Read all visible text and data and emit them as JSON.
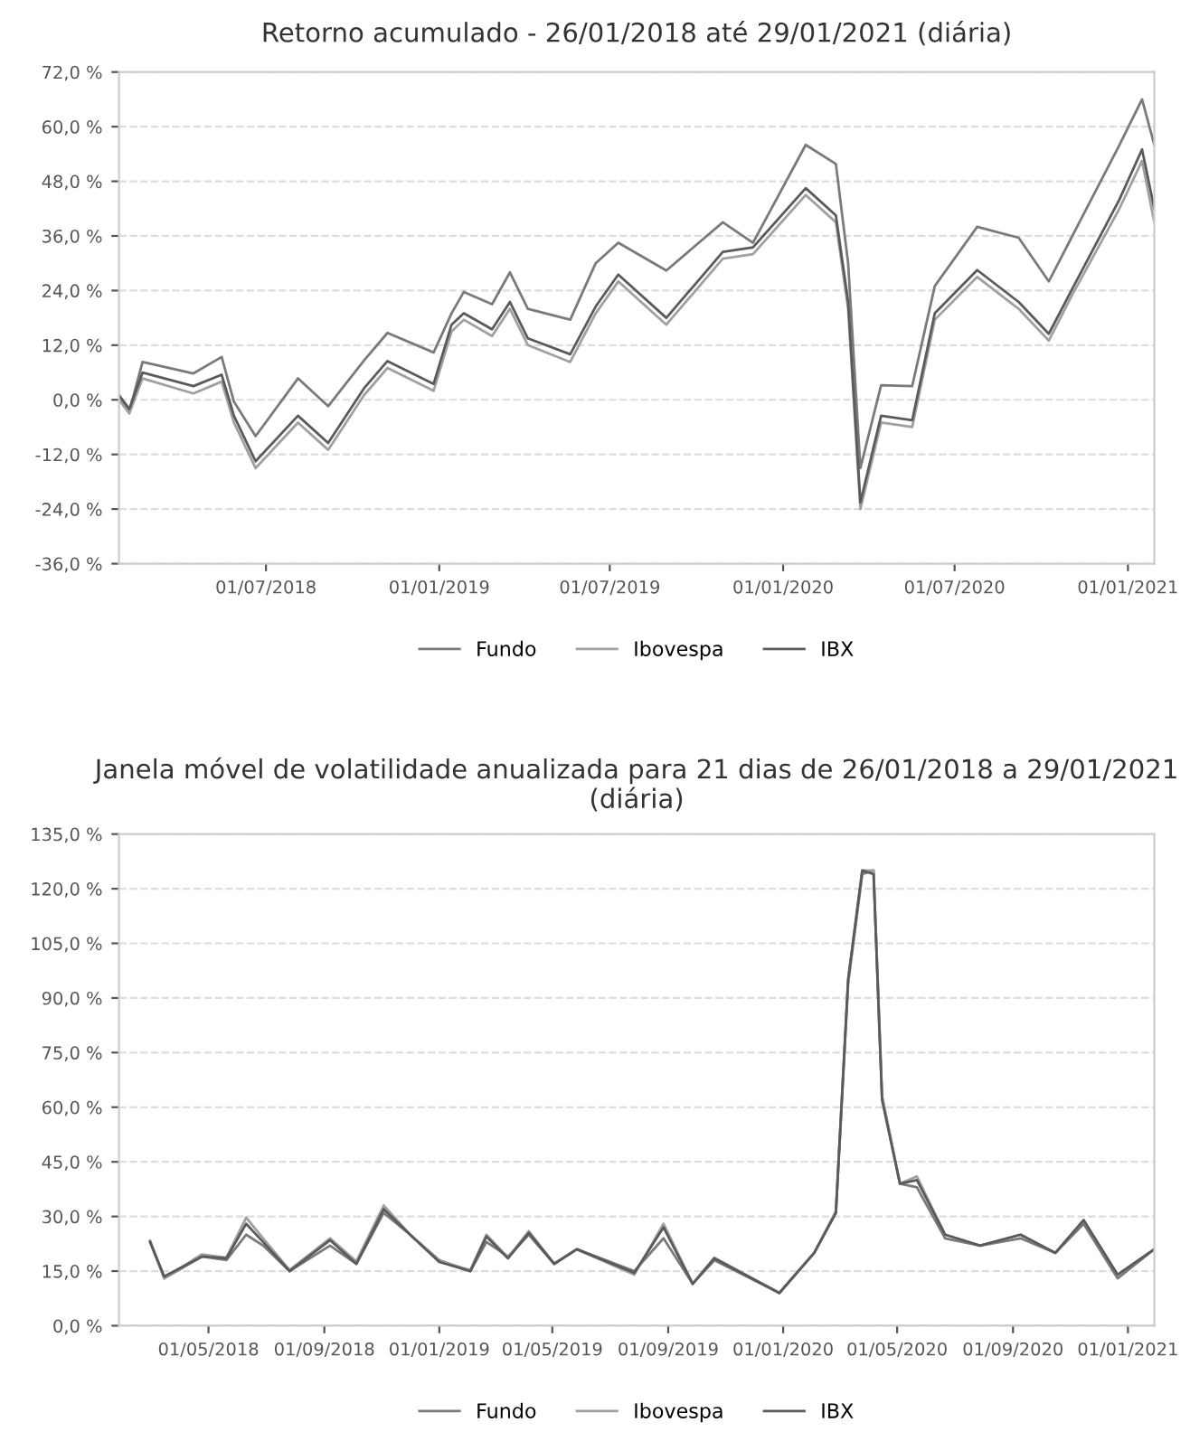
{
  "chart_data": [
    {
      "type": "line",
      "title": "Retorno acumulado - 26/01/2018 até 29/01/2021 (diária)",
      "x": [
        "2018-01-26",
        "2018-02-06",
        "2018-02-20",
        "2018-04-15",
        "2018-05-15",
        "2018-05-28",
        "2018-06-20",
        "2018-08-04",
        "2018-09-05",
        "2018-10-13",
        "2018-11-07",
        "2018-12-26",
        "2019-01-14",
        "2019-01-27",
        "2019-02-26",
        "2019-03-17",
        "2019-04-05",
        "2019-05-20",
        "2019-06-16",
        "2019-07-10",
        "2019-08-30",
        "2019-10-29",
        "2019-11-30",
        "2020-01-25",
        "2020-02-26",
        "2020-03-10",
        "2020-03-23",
        "2020-04-14",
        "2020-05-17",
        "2020-06-10",
        "2020-07-25",
        "2020-09-07",
        "2020-10-09",
        "2020-11-02",
        "2020-12-23",
        "2021-01-16",
        "2021-01-29"
      ],
      "series": [
        {
          "name": "Fundo",
          "color": "#7a7a7a",
          "values": [
            1,
            -2.5,
            8.3,
            5.8,
            9.4,
            -0.4,
            -8,
            4.7,
            -1.4,
            8.6,
            14.7,
            10.4,
            19,
            23.7,
            21,
            28,
            20,
            17.6,
            30,
            34.5,
            28.4,
            39,
            34.5,
            56,
            51.8,
            30,
            -15,
            3.2,
            3,
            25,
            38,
            35.6,
            26,
            35.6,
            56,
            66,
            56
          ]
        },
        {
          "name": "Ibovespa",
          "color": "#a0a0a0",
          "values": [
            0,
            -3,
            4.7,
            1.4,
            4,
            -5,
            -15,
            -5,
            -11,
            1,
            7,
            2,
            15,
            17.6,
            14,
            20,
            12,
            8.3,
            19,
            26,
            16.5,
            31,
            32,
            45,
            39,
            20,
            -24,
            -5,
            -6,
            17.6,
            27,
            20,
            13,
            22.7,
            42,
            52.5,
            39
          ]
        },
        {
          "name": "IBX",
          "color": "#5a5a5a",
          "values": [
            1,
            -2,
            6,
            3,
            5.5,
            -3.5,
            -13.5,
            -3.5,
            -9.5,
            2.5,
            8.5,
            3.5,
            16.5,
            19,
            15.5,
            21.5,
            13.5,
            10,
            20.5,
            27.5,
            18,
            32.5,
            33.5,
            46.5,
            40.5,
            21.5,
            -22.5,
            -3.5,
            -4.5,
            19,
            28.5,
            21.5,
            14.5,
            24,
            44,
            55,
            42
          ]
        }
      ],
      "ylim": [
        -36,
        72
      ],
      "yticks": [
        {
          "value": -36,
          "label": "-36,0 %"
        },
        {
          "value": -24,
          "label": "-24,0 %"
        },
        {
          "value": -12,
          "label": "-12,0 %"
        },
        {
          "value": 0,
          "label": "0,0 %"
        },
        {
          "value": 12,
          "label": "12,0 %"
        },
        {
          "value": 24,
          "label": "24,0 %"
        },
        {
          "value": 36,
          "label": "36,0 %"
        },
        {
          "value": 48,
          "label": "48,0 %"
        },
        {
          "value": 60,
          "label": "60,0 %"
        },
        {
          "value": 72,
          "label": "72,0 %"
        }
      ],
      "xlim": [
        "2018-01-26",
        "2021-01-29"
      ],
      "xticks": [
        {
          "value": "2018-07-01",
          "label": "01/07/2018"
        },
        {
          "value": "2019-01-01",
          "label": "01/01/2019"
        },
        {
          "value": "2019-07-01",
          "label": "01/07/2019"
        },
        {
          "value": "2020-01-01",
          "label": "01/01/2020"
        },
        {
          "value": "2020-07-01",
          "label": "01/07/2020"
        },
        {
          "value": "2021-01-01",
          "label": "01/01/2021"
        }
      ],
      "grid": "y",
      "legend": "bottom",
      "line_style": "solid"
    },
    {
      "type": "line",
      "title": "Janela móvel de volatilidade anualizada para 21 dias de 26/01/2018 a 29/01/2021 (diária)",
      "x": [
        "2018-02-28",
        "2018-03-15",
        "2018-04-24",
        "2018-05-20",
        "2018-06-10",
        "2018-06-28",
        "2018-07-26",
        "2018-09-07",
        "2018-10-05",
        "2018-11-03",
        "2018-12-01",
        "2019-01-01",
        "2019-02-03",
        "2019-02-20",
        "2019-03-15",
        "2019-04-06",
        "2019-05-03",
        "2019-05-27",
        "2019-07-27",
        "2019-08-27",
        "2019-09-27",
        "2019-10-20",
        "2019-12-28",
        "2020-02-03",
        "2020-02-26",
        "2020-03-10",
        "2020-03-25",
        "2020-04-06",
        "2020-04-15",
        "2020-05-04",
        "2020-05-22",
        "2020-06-21",
        "2020-07-28",
        "2020-09-09",
        "2020-10-16",
        "2020-11-15",
        "2020-12-21",
        "2021-01-29"
      ],
      "series": [
        {
          "name": "Fundo",
          "color": "#7a7a7a",
          "values": [
            23,
            13,
            19,
            18,
            25,
            22,
            15,
            22,
            17,
            31,
            25,
            18,
            15,
            23,
            19,
            25,
            17,
            21,
            15,
            24,
            11.5,
            18,
            9,
            20,
            31,
            94,
            124,
            125,
            63,
            39,
            38,
            24,
            22,
            24,
            20,
            28,
            13,
            21
          ]
        },
        {
          "name": "Ibovespa",
          "color": "#a0a0a0",
          "values": [
            23.4,
            13,
            19.6,
            18.7,
            29.7,
            24,
            15.3,
            24,
            17.7,
            33,
            25,
            17.7,
            15.3,
            25,
            18.7,
            26,
            17,
            21,
            14,
            28,
            11.5,
            18.7,
            9,
            20,
            31.5,
            95,
            125,
            125,
            63,
            39,
            41,
            25,
            22,
            25,
            20,
            29,
            14,
            21
          ]
        },
        {
          "name": "IBX",
          "color": "#5a5a5a",
          "values": [
            23,
            13.5,
            19,
            18.5,
            28,
            23,
            15,
            23.5,
            17,
            32,
            25,
            17.5,
            15,
            24.5,
            18.5,
            25.5,
            17,
            21,
            14.5,
            27,
            11.5,
            18.5,
            9,
            20,
            31,
            95,
            125,
            124,
            62,
            39,
            40,
            25,
            22,
            25,
            20,
            29,
            14,
            21
          ]
        }
      ],
      "ylim": [
        0,
        135
      ],
      "yticks": [
        {
          "value": 0,
          "label": "0,0 %"
        },
        {
          "value": 15,
          "label": "15,0 %"
        },
        {
          "value": 30,
          "label": "30,0 %"
        },
        {
          "value": 45,
          "label": "45,0 %"
        },
        {
          "value": 60,
          "label": "60,0 %"
        },
        {
          "value": 75,
          "label": "75,0 %"
        },
        {
          "value": 90,
          "label": "90,0 %"
        },
        {
          "value": 105,
          "label": "105,0 %"
        },
        {
          "value": 120,
          "label": "120,0 %"
        },
        {
          "value": 135,
          "label": "135,0 %"
        }
      ],
      "xlim": [
        "2018-01-26",
        "2021-01-29"
      ],
      "xticks": [
        {
          "value": "2018-05-01",
          "label": "01/05/2018"
        },
        {
          "value": "2018-09-01",
          "label": "01/09/2018"
        },
        {
          "value": "2019-01-01",
          "label": "01/01/2019"
        },
        {
          "value": "2019-05-01",
          "label": "01/05/2019"
        },
        {
          "value": "2019-09-01",
          "label": "01/09/2019"
        },
        {
          "value": "2020-01-01",
          "label": "01/01/2020"
        },
        {
          "value": "2020-05-01",
          "label": "01/05/2020"
        },
        {
          "value": "2020-09-01",
          "label": "01/09/2020"
        },
        {
          "value": "2021-01-01",
          "label": "01/01/2021"
        }
      ],
      "grid": "y",
      "legend": "bottom",
      "line_style": "solid"
    }
  ]
}
